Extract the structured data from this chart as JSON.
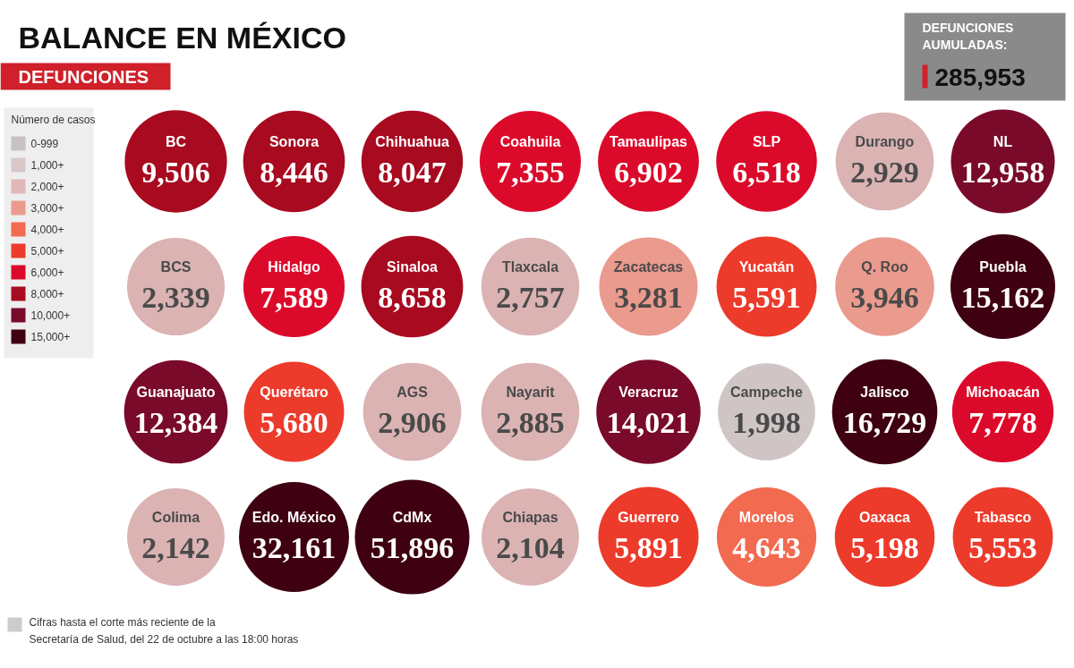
{
  "chart_data": [
    {
      "type": "other",
      "title": "BALANCE EN MÉXICO",
      "subtitle": "DEFUNCIONES",
      "value_labels": [
        "9,506",
        "8,446",
        "8,047",
        "7,355",
        "6,902",
        "6,518",
        "2,929",
        "12,958",
        "2,339",
        "7,589",
        "8,658",
        "2,757",
        "3,281",
        "5,591",
        "3,946",
        "15,162",
        "12,384",
        "5,680",
        "2,906",
        "2,885",
        "14,021",
        "1,998",
        "16,729",
        "7,778",
        "2,142",
        "32,161",
        "51,896",
        "2,104",
        "5,891",
        "4,643",
        "5,198",
        "5,553"
      ],
      "categories": [
        "BC",
        "Sonora",
        "Chihuahua",
        "Coahuila",
        "Tamaulipas",
        "SLP",
        "Durango",
        "NL",
        "BCS",
        "Hidalgo",
        "Sinaloa",
        "Tlaxcala",
        "Zacatecas",
        "Yucatán",
        "Q. Roo",
        "Puebla",
        "Guanajuato",
        "Querétaro",
        "AGS",
        "Nayarit",
        "Veracruz",
        "Campeche",
        "Jalisco",
        "Michoacán",
        "Colima",
        "Edo. México",
        "CdMx",
        "Chiapas",
        "Guerrero",
        "Morelos",
        "Oaxaca",
        "Tabasco"
      ],
      "values": [
        9506,
        8446,
        8047,
        7355,
        6902,
        6518,
        2929,
        12958,
        2339,
        7589,
        8658,
        2757,
        3281,
        5591,
        3946,
        15162,
        12384,
        5680,
        2906,
        2885,
        14021,
        1998,
        16729,
        7778,
        2142,
        32161,
        51896,
        2104,
        5891,
        4643,
        5198,
        5553
      ],
      "colors": [
        "#a80a20",
        "#a80a20",
        "#a80a20",
        "#dc0a2a",
        "#dc0a2a",
        "#dc0a2a",
        "#dbb3b3",
        "#7a0a2a",
        "#dbb3b3",
        "#dc0a2a",
        "#a80a20",
        "#dbb3b3",
        "#eb9a8e",
        "#ec3b2b",
        "#eb9a8e",
        "#3f0012",
        "#7a0a2a",
        "#ec3b2b",
        "#dbb3b3",
        "#dbb3b3",
        "#7a0a2a",
        "#cfc5c5",
        "#3f0012",
        "#dc0a2a",
        "#dbb3b3",
        "#3f0012",
        "#3f0012",
        "#dbb3b3",
        "#ec3b2b",
        "#f26a50",
        "#ec3b2b",
        "#ec3b2b"
      ],
      "annotations": [
        "DEFUNCIONES\nAUMULADAS:",
        "285,953",
        "Cifras hasta el corte más reciente de la\nSecretaría de Salud, del 22 de octubre a las 18:00 horas"
      ]
    },
    {
      "type": "other",
      "title": "Número de casos",
      "categories": [
        "0-999",
        "1,000+",
        "2,000+",
        "3,000+",
        "4,000+",
        "5,000+",
        "6,000+",
        "8,000+",
        "10,000+",
        "15,000+"
      ],
      "colors": [
        "#c8c2c2",
        "#d8c8c8",
        "#e0b8b8",
        "#eb9a8e",
        "#f26a50",
        "#ec3b2b",
        "#dc0a2a",
        "#a80a20",
        "#7a0a2a",
        "#3f0012"
      ]
    }
  ]
}
